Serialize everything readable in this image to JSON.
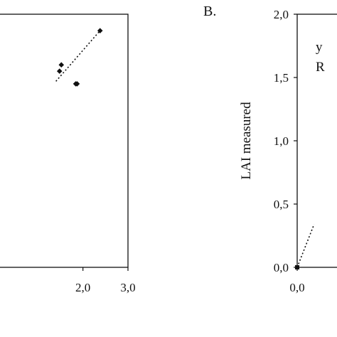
{
  "chart_data": [
    {
      "panel": "A",
      "type": "scatter",
      "xlim": [
        0.0,
        3.0
      ],
      "x_ticks": [
        "2,0",
        "3,0"
      ],
      "x_tick_values": [
        2.0,
        3.0
      ],
      "points": [
        {
          "x": 1.48,
          "y": 1.55
        },
        {
          "x": 1.52,
          "y": 1.6
        },
        {
          "x": 1.84,
          "y": 1.45
        },
        {
          "x": 1.87,
          "y": 1.45
        },
        {
          "x": 2.38,
          "y": 1.87
        }
      ],
      "trendline": {
        "x0": 1.4,
        "y0": 1.47,
        "x1": 2.38,
        "y1": 1.87,
        "style": "dotted"
      },
      "ylim": [
        0.0,
        2.0
      ]
    },
    {
      "panel": "B",
      "panel_label": "B.",
      "type": "scatter",
      "ylabel": "LAI measured",
      "ylim": [
        0.0,
        2.0
      ],
      "y_ticks": [
        "0,0",
        "0,5",
        "1,0",
        "1,5",
        "2,0"
      ],
      "y_tick_values": [
        0.0,
        0.5,
        1.0,
        1.5,
        2.0
      ],
      "x_ticks": [
        "0,0"
      ],
      "x_tick_values": [
        0.0
      ],
      "points": [
        {
          "x": 0.0,
          "y": 0.0
        }
      ],
      "trendline": {
        "x0": 0.0,
        "y0": 0.0,
        "x1": 0.17,
        "y1": 0.34,
        "style": "dotted"
      },
      "equation_fragment": "y",
      "r2_fragment": "R"
    }
  ]
}
